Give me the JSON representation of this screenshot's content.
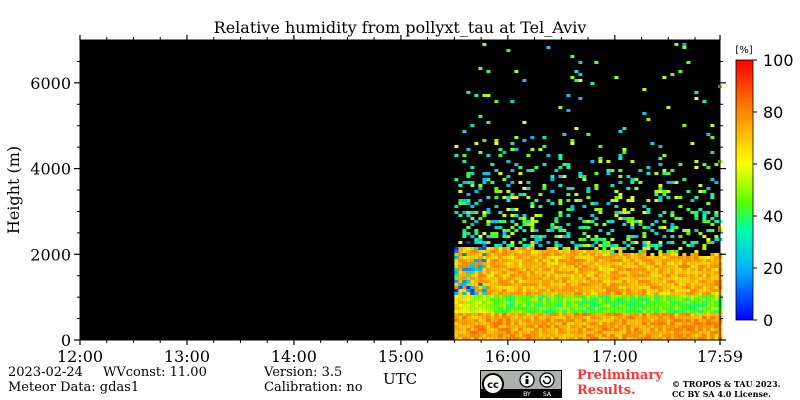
{
  "chart_data": {
    "type": "heatmap",
    "title": "Relative humidity from pollyxt_tau at Tel_Aviv",
    "xlabel": "UTC",
    "ylabel": "Height (m)",
    "x_range": [
      "12:00",
      "17:59"
    ],
    "ylim": [
      0,
      7000
    ],
    "x_ticks": [
      "12:00",
      "13:00",
      "14:00",
      "15:00",
      "16:00",
      "17:00",
      "17:59"
    ],
    "y_ticks": [
      0,
      2000,
      4000,
      6000
    ],
    "data_start": "15:30",
    "colorbar": {
      "unit": "[%]",
      "range": [
        0,
        100
      ],
      "ticks": [
        0,
        20,
        40,
        60,
        80,
        100
      ]
    },
    "profile_layers": [
      {
        "height_min": 0,
        "height_max": 700,
        "rh_percent": 75
      },
      {
        "height_min": 700,
        "height_max": 1100,
        "rh_percent": 45
      },
      {
        "height_min": 1100,
        "height_max": 2200,
        "rh_percent": 72
      },
      {
        "height_min": 2200,
        "height_max": 7000,
        "rh_percent": 40,
        "note": "sparse"
      }
    ]
  },
  "footer": {
    "date": "2023-02-24",
    "wvconst": "WVconst:  11.00",
    "version": "Version: 3.5",
    "meteor": "Meteor Data: gdas1",
    "calibration": "Calibration: no",
    "preliminary_line1": "Preliminary",
    "preliminary_line2": "Results.",
    "copyright_line1": "© TROPOS & TAU 2023.",
    "copyright_line2": "CC BY SA 4.0 License.",
    "badge_cc": "cc",
    "badge_by": "BY",
    "badge_sa": "SA"
  }
}
